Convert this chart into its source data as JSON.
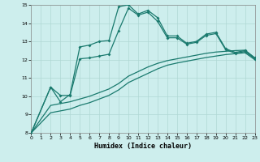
{
  "xlabel": "Humidex (Indice chaleur)",
  "bg_color": "#cdeeed",
  "grid_color": "#b0d8d4",
  "line_color": "#1a7a6e",
  "xlim": [
    0,
    23
  ],
  "ylim": [
    8,
    15
  ],
  "yticks": [
    8,
    9,
    10,
    11,
    12,
    13,
    14,
    15
  ],
  "xticks": [
    0,
    1,
    2,
    3,
    4,
    5,
    6,
    7,
    8,
    9,
    10,
    11,
    12,
    13,
    14,
    15,
    16,
    17,
    18,
    19,
    20,
    21,
    22,
    23
  ],
  "s1_x": [
    0,
    2,
    3,
    4,
    5,
    6,
    7,
    8,
    9,
    10,
    11,
    12,
    13,
    14,
    15,
    16,
    17,
    18,
    19,
    20,
    21,
    22,
    23
  ],
  "s1_y": [
    8.0,
    10.5,
    9.7,
    10.1,
    12.7,
    12.8,
    13.0,
    13.05,
    14.9,
    15.0,
    14.5,
    14.7,
    14.3,
    13.3,
    13.3,
    12.9,
    13.0,
    13.4,
    13.5,
    12.6,
    12.4,
    12.5,
    12.1
  ],
  "s2_x": [
    0,
    2,
    3,
    4,
    5,
    6,
    7,
    8,
    9,
    10,
    11,
    12,
    13,
    14,
    15,
    16,
    17,
    18,
    19,
    20,
    21,
    22,
    23
  ],
  "s2_y": [
    8.0,
    10.5,
    10.05,
    10.05,
    12.05,
    12.1,
    12.2,
    12.3,
    13.6,
    14.82,
    14.44,
    14.6,
    14.1,
    13.2,
    13.2,
    12.85,
    12.95,
    13.33,
    13.43,
    12.55,
    12.35,
    12.45,
    12.05
  ],
  "s3_x": [
    0,
    2,
    3,
    4,
    5,
    6,
    7,
    8,
    9,
    10,
    11,
    12,
    13,
    14,
    15,
    16,
    17,
    18,
    19,
    20,
    21,
    22,
    23
  ],
  "s3_y": [
    8.0,
    9.5,
    9.6,
    9.7,
    9.85,
    10.0,
    10.2,
    10.4,
    10.7,
    11.1,
    11.35,
    11.6,
    11.8,
    11.95,
    12.05,
    12.15,
    12.25,
    12.35,
    12.42,
    12.46,
    12.5,
    12.52,
    12.1
  ],
  "s4_x": [
    0,
    2,
    3,
    4,
    5,
    6,
    7,
    8,
    9,
    10,
    11,
    12,
    13,
    14,
    15,
    16,
    17,
    18,
    19,
    20,
    21,
    22,
    23
  ],
  "s4_y": [
    8.0,
    9.1,
    9.2,
    9.3,
    9.5,
    9.65,
    9.85,
    10.05,
    10.35,
    10.75,
    11.0,
    11.25,
    11.5,
    11.7,
    11.82,
    11.92,
    12.02,
    12.12,
    12.2,
    12.28,
    12.33,
    12.38,
    12.0
  ]
}
